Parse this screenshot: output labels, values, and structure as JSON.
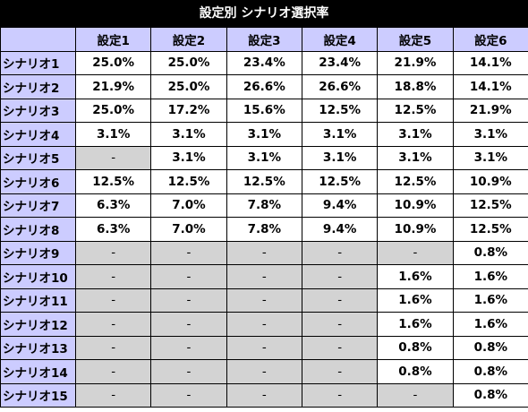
{
  "title": "設定別 シナリオ選択率",
  "headers": [
    "設定1",
    "設定2",
    "設定3",
    "設定4",
    "設定5",
    "設定6"
  ],
  "rows": [
    {
      "label": "シナリオ1",
      "values": [
        "25.0%",
        "25.0%",
        "23.4%",
        "23.4%",
        "21.9%",
        "14.1%"
      ]
    },
    {
      "label": "シナリオ2",
      "values": [
        "21.9%",
        "25.0%",
        "26.6%",
        "26.6%",
        "18.8%",
        "14.1%"
      ]
    },
    {
      "label": "シナリオ3",
      "values": [
        "25.0%",
        "17.2%",
        "15.6%",
        "12.5%",
        "12.5%",
        "21.9%"
      ]
    },
    {
      "label": "シナリオ4",
      "values": [
        "3.1%",
        "3.1%",
        "3.1%",
        "3.1%",
        "3.1%",
        "3.1%"
      ]
    },
    {
      "label": "シナリオ5",
      "values": [
        "-",
        "3.1%",
        "3.1%",
        "3.1%",
        "3.1%",
        "3.1%"
      ]
    },
    {
      "label": "シナリオ6",
      "values": [
        "12.5%",
        "12.5%",
        "12.5%",
        "12.5%",
        "12.5%",
        "10.9%"
      ]
    },
    {
      "label": "シナリオ7",
      "values": [
        "6.3%",
        "7.0%",
        "7.8%",
        "9.4%",
        "10.9%",
        "12.5%"
      ]
    },
    {
      "label": "シナリオ8",
      "values": [
        "6.3%",
        "7.0%",
        "7.8%",
        "9.4%",
        "10.9%",
        "12.5%"
      ]
    },
    {
      "label": "シナリオ9",
      "values": [
        "-",
        "-",
        "-",
        "-",
        "-",
        "0.8%"
      ]
    },
    {
      "label": "シナリオ10",
      "values": [
        "-",
        "-",
        "-",
        "-",
        "1.6%",
        "1.6%"
      ]
    },
    {
      "label": "シナリオ11",
      "values": [
        "-",
        "-",
        "-",
        "-",
        "1.6%",
        "1.6%"
      ]
    },
    {
      "label": "シナリオ12",
      "values": [
        "-",
        "-",
        "-",
        "-",
        "1.6%",
        "1.6%"
      ]
    },
    {
      "label": "シナリオ13",
      "values": [
        "-",
        "-",
        "-",
        "-",
        "0.8%",
        "0.8%"
      ]
    },
    {
      "label": "シナリオ14",
      "values": [
        "-",
        "-",
        "-",
        "-",
        "0.8%",
        "0.8%"
      ]
    },
    {
      "label": "シナリオ15",
      "values": [
        "-",
        "-",
        "-",
        "-",
        "-",
        "0.8%"
      ]
    }
  ],
  "colors": {
    "title_bg": "#000000",
    "title_text": "#ffffff",
    "header_bg": "#ccccff",
    "empty_bg": "#d3d3d3"
  }
}
